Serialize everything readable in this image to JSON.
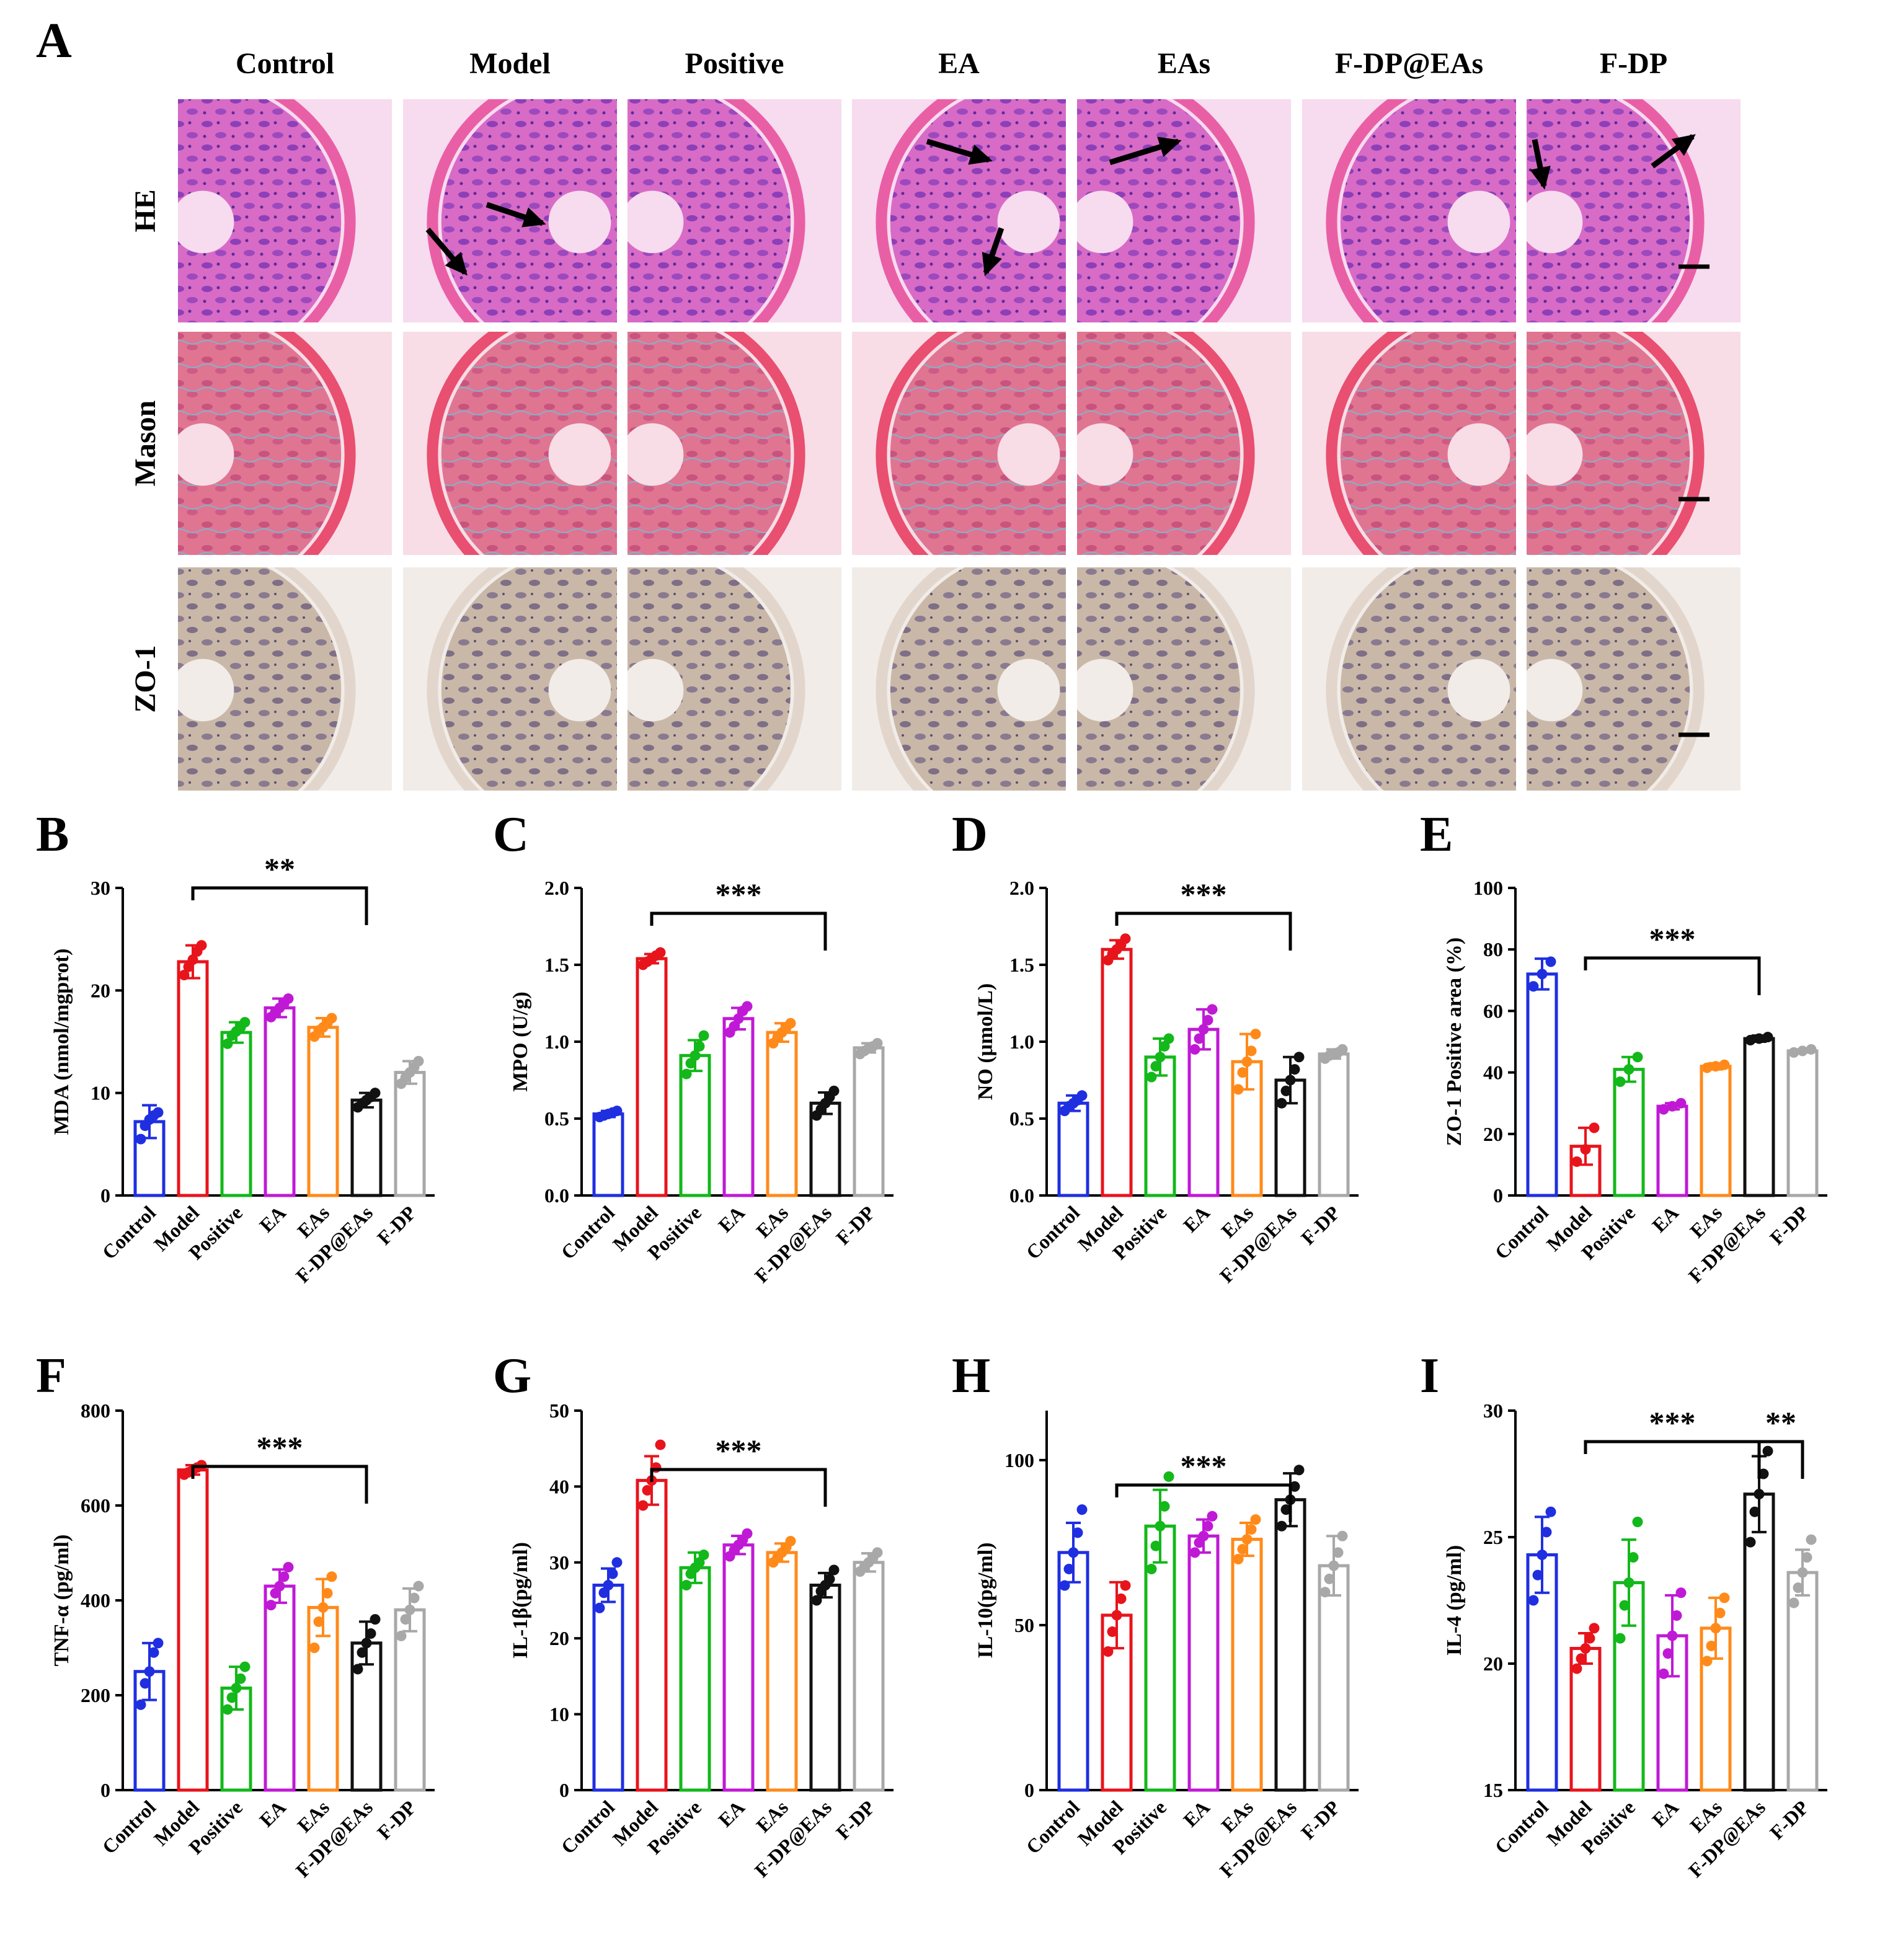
{
  "panel_a": {
    "letter": "A",
    "columns": [
      "Control",
      "Model",
      "Positive",
      "EA",
      "EAs",
      "F-DP@EAs",
      "F-DP"
    ],
    "rows": [
      "HE",
      "Mason",
      "ZO-1"
    ]
  },
  "group_colors": [
    "#1f2fe0",
    "#e8141c",
    "#13b81a",
    "#c019d6",
    "#ff8a1a",
    "#111111",
    "#a8a8a8"
  ],
  "chart_data": [
    {
      "letter": "B",
      "type": "bar",
      "ylabel": "MDA (nmol/mgprot)",
      "categories": [
        "Control",
        "Model",
        "Positive",
        "EA",
        "EAs",
        "F-DP@EAs",
        "F-DP"
      ],
      "values": [
        7.2,
        22.8,
        15.9,
        18.3,
        16.4,
        9.3,
        12.0
      ],
      "errors": [
        1.6,
        1.6,
        1.0,
        0.9,
        0.9,
        0.7,
        1.1
      ],
      "points": [
        [
          5.5,
          6.8,
          7.4,
          7.8,
          8.1
        ],
        [
          21.5,
          22.3,
          23.0,
          23.8,
          24.4
        ],
        [
          14.8,
          15.6,
          16.0,
          16.4,
          16.9
        ],
        [
          17.4,
          17.9,
          18.3,
          18.7,
          19.2
        ],
        [
          15.5,
          16.1,
          16.4,
          16.8,
          17.3
        ],
        [
          8.6,
          9.0,
          9.3,
          9.6,
          10.0
        ],
        [
          10.9,
          11.5,
          12.0,
          12.5,
          13.1
        ]
      ],
      "ylim": [
        0,
        30
      ],
      "yticks": [
        0,
        10,
        20,
        30
      ],
      "significance": [
        {
          "from": 1,
          "to": 5,
          "label": "**"
        }
      ]
    },
    {
      "letter": "C",
      "type": "bar",
      "ylabel": "MPO (U/g)",
      "categories": [
        "Control",
        "Model",
        "Positive",
        "EA",
        "EAs",
        "F-DP@EAs",
        "F-DP"
      ],
      "values": [
        0.53,
        1.54,
        0.91,
        1.15,
        1.06,
        0.6,
        0.96
      ],
      "errors": [
        0.02,
        0.03,
        0.1,
        0.07,
        0.06,
        0.07,
        0.03
      ],
      "points": [
        [
          0.51,
          0.52,
          0.53,
          0.54,
          0.55
        ],
        [
          1.5,
          1.52,
          1.54,
          1.56,
          1.58
        ],
        [
          0.79,
          0.86,
          0.91,
          0.97,
          1.04
        ],
        [
          1.06,
          1.1,
          1.15,
          1.2,
          1.23
        ],
        [
          0.99,
          1.03,
          1.06,
          1.09,
          1.12
        ],
        [
          0.52,
          0.56,
          0.6,
          0.64,
          0.68
        ],
        [
          0.92,
          0.94,
          0.96,
          0.97,
          0.99
        ]
      ],
      "ylim": [
        0,
        2
      ],
      "yticks": [
        0.0,
        0.5,
        1.0,
        1.5,
        2.0
      ],
      "significance": [
        {
          "from": 1,
          "to": 5,
          "label": "***"
        }
      ]
    },
    {
      "letter": "D",
      "type": "bar",
      "ylabel": "NO (μmol/L)",
      "categories": [
        "Control",
        "Model",
        "Positive",
        "EA",
        "EAs",
        "F-DP@EAs",
        "F-DP"
      ],
      "values": [
        0.6,
        1.6,
        0.9,
        1.08,
        0.87,
        0.75,
        0.92
      ],
      "errors": [
        0.05,
        0.06,
        0.12,
        0.13,
        0.18,
        0.15,
        0.03
      ],
      "points": [
        [
          0.55,
          0.58,
          0.6,
          0.62,
          0.65
        ],
        [
          1.53,
          1.57,
          1.6,
          1.63,
          1.67
        ],
        [
          0.77,
          0.84,
          0.9,
          0.97,
          1.02
        ],
        [
          0.95,
          1.02,
          1.08,
          1.14,
          1.21
        ],
        [
          0.69,
          0.8,
          0.87,
          0.94,
          1.05
        ],
        [
          0.6,
          0.68,
          0.75,
          0.82,
          0.9
        ],
        [
          0.89,
          0.91,
          0.92,
          0.93,
          0.95
        ]
      ],
      "ylim": [
        0,
        2
      ],
      "yticks": [
        0.0,
        0.5,
        1.0,
        1.5,
        2.0
      ],
      "significance": [
        {
          "from": 1,
          "to": 5,
          "label": "***"
        }
      ]
    },
    {
      "letter": "E",
      "type": "bar",
      "ylabel": "ZO-1 Positive area (%)",
      "categories": [
        "Control",
        "Model",
        "Positive",
        "EA",
        "EAs",
        "F-DP@EAs",
        "F-DP"
      ],
      "values": [
        72,
        16,
        41,
        29,
        42,
        51,
        47
      ],
      "errors": [
        5,
        6,
        4,
        1,
        1,
        1,
        0.5
      ],
      "points": [
        [
          68,
          72,
          76
        ],
        [
          11,
          15,
          22
        ],
        [
          37,
          41,
          45
        ],
        [
          28,
          29,
          30
        ],
        [
          41.5,
          42,
          42.5
        ],
        [
          50.5,
          51,
          51.5
        ],
        [
          46.5,
          47,
          47.5
        ]
      ],
      "ylim": [
        0,
        100
      ],
      "yticks": [
        0,
        20,
        40,
        60,
        80,
        100
      ],
      "significance": [
        {
          "from": 1,
          "to": 5,
          "label": "***"
        }
      ]
    },
    {
      "letter": "F",
      "type": "bar",
      "ylabel": "TNF-α (pg/ml)",
      "categories": [
        "Control",
        "Model",
        "Positive",
        "EA",
        "EAs",
        "F-DP@EAs",
        "F-DP"
      ],
      "values": [
        250,
        675,
        215,
        430,
        385,
        310,
        380
      ],
      "errors": [
        60,
        10,
        45,
        35,
        60,
        45,
        45
      ],
      "points": [
        [
          180,
          225,
          250,
          290,
          310
        ],
        [
          665,
          670,
          675,
          680,
          685
        ],
        [
          170,
          195,
          215,
          235,
          260
        ],
        [
          390,
          415,
          430,
          450,
          470
        ],
        [
          300,
          355,
          385,
          415,
          450
        ],
        [
          255,
          290,
          310,
          330,
          360
        ],
        [
          325,
          360,
          380,
          405,
          430
        ]
      ],
      "ylim": [
        0,
        800
      ],
      "yticks": [
        0,
        200,
        400,
        600,
        800
      ],
      "significance": [
        {
          "from": 1,
          "to": 5,
          "label": "***"
        }
      ]
    },
    {
      "letter": "G",
      "type": "bar",
      "ylabel": "IL-1β(pg/ml)",
      "categories": [
        "Control",
        "Model",
        "Positive",
        "EA",
        "EAs",
        "F-DP@EAs",
        "F-DP"
      ],
      "values": [
        27,
        40.8,
        29.3,
        32.3,
        31.3,
        27,
        30
      ],
      "errors": [
        2.2,
        3.2,
        2.0,
        1.2,
        1.2,
        1.6,
        1.2
      ],
      "points": [
        [
          24,
          26,
          27,
          28.5,
          30
        ],
        [
          37.5,
          39.5,
          40.8,
          42.5,
          45.5
        ],
        [
          27,
          28.5,
          29.3,
          30,
          31
        ],
        [
          30.8,
          31.6,
          32.3,
          33,
          33.8
        ],
        [
          30,
          30.7,
          31.3,
          32,
          32.8
        ],
        [
          25,
          26.2,
          27,
          27.8,
          29
        ],
        [
          28.8,
          29.4,
          30,
          30.6,
          31.3
        ]
      ],
      "ylim": [
        0,
        50
      ],
      "yticks": [
        0,
        10,
        20,
        30,
        40,
        50
      ],
      "significance": [
        {
          "from": 1,
          "to": 5,
          "label": "***"
        }
      ]
    },
    {
      "letter": "H",
      "type": "bar",
      "ylabel": "IL-10(pg/ml)",
      "categories": [
        "Control",
        "Model",
        "Positive",
        "EA",
        "EAs",
        "F-DP@EAs",
        "F-DP"
      ],
      "values": [
        72,
        53,
        80,
        77,
        76,
        88,
        68
      ],
      "errors": [
        9,
        10,
        11,
        5,
        5,
        8,
        9
      ],
      "points": [
        [
          62,
          67,
          72,
          78,
          85
        ],
        [
          42,
          48,
          53,
          58,
          62
        ],
        [
          67,
          74,
          80,
          86,
          95
        ],
        [
          72,
          75,
          77,
          80,
          83
        ],
        [
          70,
          73,
          76,
          79,
          82
        ],
        [
          80,
          85,
          88,
          92,
          97
        ],
        [
          60,
          64,
          68,
          72,
          77
        ]
      ],
      "ylim": [
        0,
        115
      ],
      "yticks": [
        0,
        50,
        100
      ],
      "significance": [
        {
          "from": 1,
          "to": 5,
          "label": "***"
        }
      ]
    },
    {
      "letter": "I",
      "type": "bar",
      "ylabel": "IL-4 (pg/ml)",
      "categories": [
        "Control",
        "Model",
        "Positive",
        "EA",
        "EAs",
        "F-DP@EAs",
        "F-DP"
      ],
      "values": [
        24.3,
        20.6,
        23.2,
        21.1,
        21.4,
        26.7,
        23.6
      ],
      "errors": [
        1.5,
        0.6,
        1.7,
        1.6,
        1.2,
        1.5,
        0.9
      ],
      "points": [
        [
          22.5,
          23.5,
          24.3,
          25.2,
          26
        ],
        [
          19.8,
          20.2,
          20.6,
          21,
          21.4
        ],
        [
          21,
          22.3,
          23.2,
          24.2,
          25.6
        ],
        [
          19.6,
          20.4,
          21.1,
          21.9,
          22.8
        ],
        [
          20.1,
          20.7,
          21.4,
          22,
          22.6
        ],
        [
          24.8,
          26,
          26.7,
          27.5,
          28.4
        ],
        [
          22.4,
          23,
          23.6,
          24.2,
          24.9
        ]
      ],
      "ylim": [
        15,
        30
      ],
      "yticks": [
        15,
        20,
        25,
        30
      ],
      "significance": [
        {
          "from": 1,
          "to": 5,
          "label": "***"
        },
        {
          "from": 5,
          "to": 6,
          "label": "**"
        }
      ]
    }
  ]
}
